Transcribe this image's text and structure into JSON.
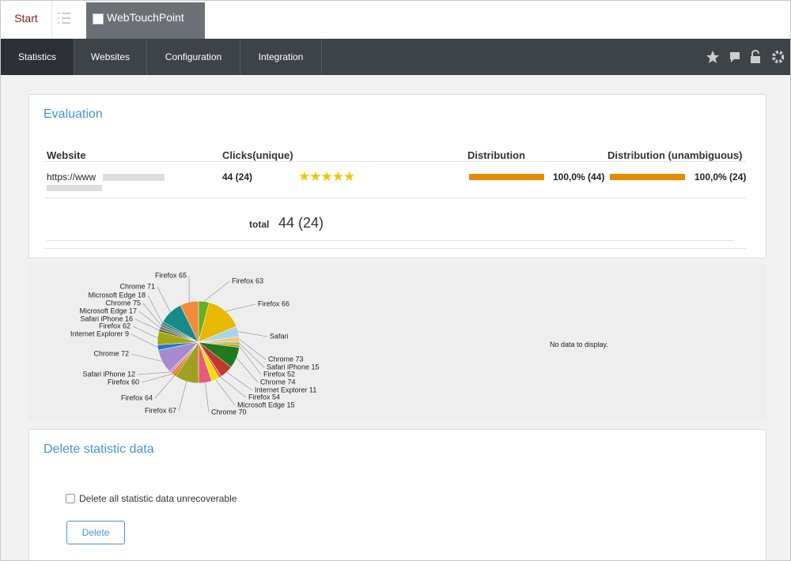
{
  "tabs": {
    "start": "Start",
    "app": "WebTouchPoint"
  },
  "nav": [
    "Statistics",
    "Websites",
    "Configuration",
    "Integration"
  ],
  "evaluation": {
    "title": "Evaluation",
    "headers": [
      "Website",
      "Clicks(unique)",
      "Distribution",
      "Distribution (unambiguous)"
    ],
    "row": {
      "website": "https://www",
      "clicks": "44 (24)",
      "distribution": "100,0% (44)",
      "distribution_unambiguous": "100,0% (24)"
    },
    "total_label": "total",
    "total_value": "44 (24)"
  },
  "chart_data": {
    "type": "pie",
    "categories": [
      "Firefox 63",
      "Firefox 66",
      "Safari",
      "Chrome 73",
      "Safari iPhone 15",
      "Firefox 52",
      "Chrome 74",
      "Internet Explorer 11",
      "Firefox 54",
      "Microsoft Edge 15",
      "Chrome 70",
      "Firefox 67",
      "Firefox 64",
      "Firefox 60",
      "Safari iPhone 12",
      "Chrome 72",
      "Internet Explorer 9",
      "Firefox 62",
      "Safari iPhone 16",
      "Microsoft Edge 17",
      "Chrome 75",
      "Microsoft Edge 18",
      "Chrome 71",
      "Firefox 65"
    ],
    "values": [
      4,
      14,
      4,
      2,
      1,
      1,
      8,
      5,
      1,
      3,
      5,
      9,
      1,
      1,
      1,
      9,
      2,
      5,
      1,
      1,
      1,
      1,
      9,
      7
    ],
    "colors": [
      "#6aad1f",
      "#e8b900",
      "#a9d4ee",
      "#f5c66a",
      "#8fbc8f",
      "#c4a000",
      "#1f7a1f",
      "#c0392b",
      "#ee5a5a",
      "#f0e000",
      "#e85a7a",
      "#a0a020",
      "#d07a2a",
      "#e67e22",
      "#c9a0d0",
      "#a78bcf",
      "#1e78c8",
      "#a6a615",
      "#556b2f",
      "#8a6d3b",
      "#4682b4",
      "#2e8b57",
      "#178a8a",
      "#f08c3c"
    ]
  },
  "no_data": "No data to display.",
  "delete_section": {
    "title": "Delete statistic data",
    "checkbox": "Delete all statistic data unrecoverable",
    "button": "Delete"
  }
}
